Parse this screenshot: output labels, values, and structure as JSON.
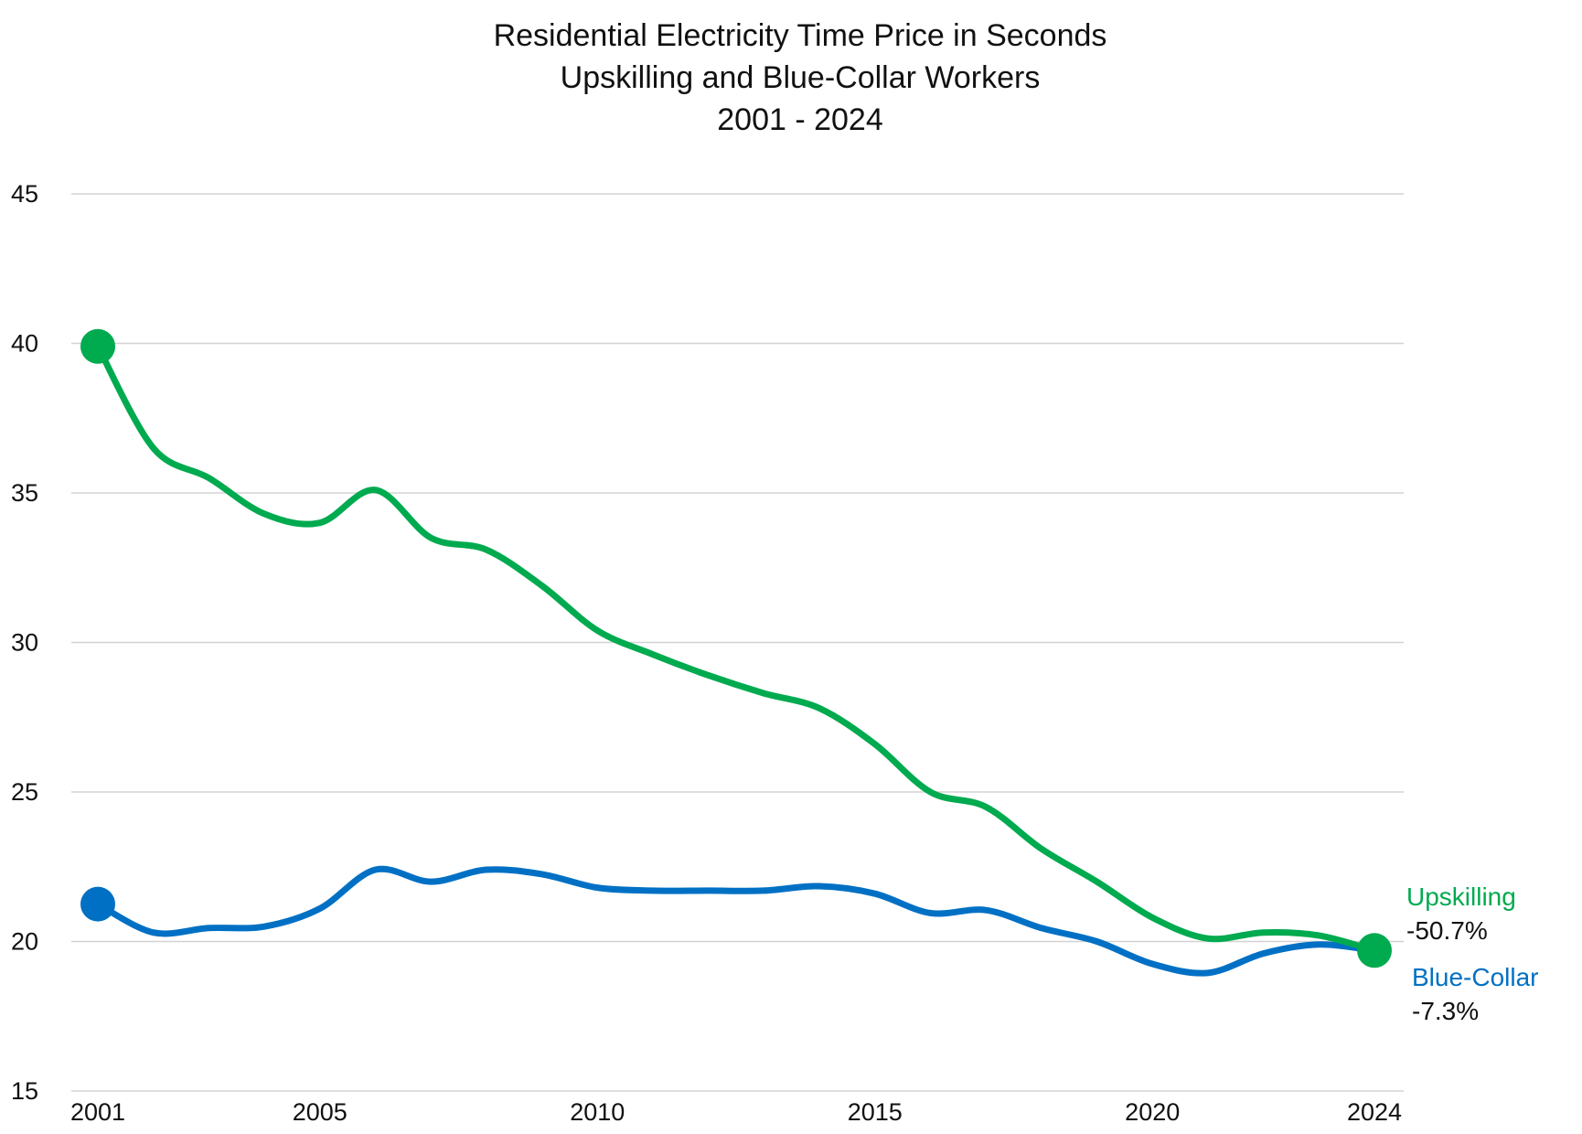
{
  "chart_data": {
    "type": "line",
    "title": [
      "Residential Electricity Time Price in Seconds",
      "Upskilling and Blue-Collar Workers",
      "2001 - 2024"
    ],
    "xlabel": "",
    "ylabel": "",
    "ylim": [
      15,
      45
    ],
    "yticks": [
      15,
      20,
      25,
      30,
      35,
      40,
      45
    ],
    "xticks": [
      2001,
      2005,
      2010,
      2015,
      2020,
      2024
    ],
    "grid": true,
    "x": [
      2001,
      2002,
      2003,
      2004,
      2005,
      2006,
      2007,
      2008,
      2009,
      2010,
      2011,
      2012,
      2013,
      2014,
      2015,
      2016,
      2017,
      2018,
      2019,
      2020,
      2021,
      2022,
      2023,
      2024
    ],
    "series": [
      {
        "name": "Upskilling",
        "change_label": "-50.7%",
        "color": "#00AA4F",
        "values": [
          39.9,
          36.5,
          35.5,
          34.3,
          34.0,
          35.1,
          33.5,
          33.1,
          31.9,
          30.4,
          29.6,
          28.9,
          28.3,
          27.8,
          26.6,
          25.0,
          24.5,
          23.1,
          22.0,
          20.8,
          20.1,
          20.3,
          20.2,
          19.7
        ]
      },
      {
        "name": "Blue-Collar",
        "change_label": "-7.3%",
        "color": "#0070C4",
        "values": [
          21.25,
          20.3,
          20.45,
          20.5,
          21.1,
          22.4,
          22.0,
          22.4,
          22.25,
          21.8,
          21.7,
          21.7,
          21.7,
          21.85,
          21.6,
          20.95,
          21.05,
          20.45,
          20.0,
          19.25,
          18.95,
          19.6,
          19.9,
          19.7
        ]
      }
    ]
  }
}
